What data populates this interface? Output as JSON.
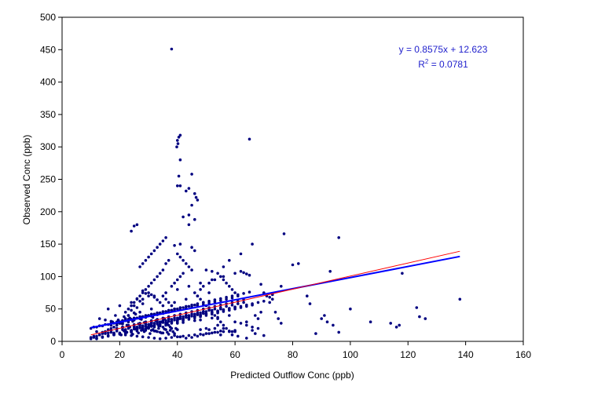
{
  "chart_data": {
    "type": "scatter",
    "title": "",
    "xlabel": "Predicted Outflow Conc (ppb)",
    "ylabel": "Observed Conc (ppb)",
    "xlim": [
      0,
      160
    ],
    "ylim": [
      0,
      500
    ],
    "xticks": [
      0,
      20,
      40,
      60,
      80,
      100,
      120,
      140,
      160
    ],
    "yticks": [
      0,
      50,
      100,
      150,
      200,
      250,
      300,
      350,
      400,
      450,
      500
    ],
    "grid": false,
    "legend": "none",
    "colors": {
      "points": "#000080",
      "trendline": "#0000ff",
      "identity_line": "#ff0000",
      "equation": "#1f1fcc"
    },
    "equation_text": "y = 0.8575x + 12.623",
    "r2_prefix": "R",
    "r2_sup": "2",
    "r2_value": " = 0.0781",
    "lines": [
      {
        "kind": "linear-trend",
        "color": "#0000ff",
        "slope": 0.8575,
        "intercept": 12.623,
        "x_range": [
          10,
          138
        ]
      },
      {
        "kind": "reference",
        "color": "#ff0000",
        "x": [
          10,
          138
        ],
        "y": [
          10,
          139
        ]
      }
    ],
    "points_x": [
      38,
      41,
      40.5,
      40,
      40.2,
      39.8,
      41,
      40.5,
      45,
      44,
      43,
      46,
      46.5,
      47,
      45,
      44,
      42,
      46,
      40,
      41,
      44,
      41,
      45,
      46,
      39,
      40,
      41,
      42,
      43,
      44,
      45,
      42,
      41,
      40,
      39,
      38,
      36,
      35,
      34,
      33,
      32,
      31,
      30,
      29,
      28,
      27,
      26,
      25,
      24,
      37,
      36,
      35,
      34,
      33,
      32,
      31,
      30,
      29,
      28,
      27,
      26,
      25,
      24,
      23,
      22,
      50,
      52,
      54,
      55,
      56,
      57,
      58,
      59,
      60,
      61,
      62,
      63,
      64,
      65,
      53,
      51,
      49,
      48,
      46,
      47,
      48,
      49,
      50,
      51,
      52,
      53,
      54,
      55,
      56,
      57,
      58,
      59,
      60,
      62,
      64,
      66,
      68,
      35,
      36,
      37,
      38,
      39,
      30,
      31,
      32,
      33,
      34,
      28,
      29,
      30,
      26,
      27,
      28,
      25,
      26,
      24,
      25,
      23,
      22,
      21,
      20,
      19,
      18,
      17,
      16,
      15,
      14,
      13,
      12,
      11,
      10,
      12,
      14,
      16,
      18,
      20,
      22,
      24,
      26,
      28,
      30,
      32,
      34,
      36,
      38,
      40,
      42,
      44,
      46,
      48,
      50,
      52,
      54,
      56,
      58,
      60,
      19,
      21,
      23,
      25,
      27,
      29,
      31,
      33,
      35,
      37,
      39,
      41,
      43,
      45,
      47,
      49,
      51,
      53,
      55,
      57,
      59,
      61,
      63,
      18,
      20,
      22,
      24,
      26,
      28,
      30,
      32,
      34,
      36,
      38,
      40,
      42,
      44,
      46,
      48,
      50,
      52,
      54,
      20,
      22,
      24,
      26,
      28,
      30,
      32,
      34,
      36,
      38,
      17,
      19,
      21,
      23,
      25,
      27,
      29,
      31,
      33,
      35,
      37,
      39,
      41,
      43,
      45,
      47,
      49,
      51,
      53,
      55,
      57,
      59,
      15,
      17,
      19,
      21,
      23,
      25,
      27,
      29,
      31,
      33,
      22,
      24,
      26,
      28,
      30,
      32,
      34,
      36,
      38,
      40,
      42,
      44,
      46,
      48,
      50,
      52,
      54,
      56,
      58,
      60,
      62,
      64,
      66,
      65,
      66,
      62,
      58,
      56,
      69,
      70,
      72,
      73,
      74,
      75,
      76,
      77,
      80,
      82,
      85,
      86,
      88,
      90,
      91,
      92,
      93,
      94,
      96,
      96,
      100,
      107,
      114,
      116,
      117,
      118,
      123,
      124,
      126,
      138,
      76,
      71,
      72,
      73,
      70,
      68,
      66,
      64,
      62,
      60,
      58,
      56,
      54,
      52,
      50,
      48,
      46,
      44,
      42,
      40,
      38,
      36,
      34,
      32,
      30,
      28,
      26,
      24,
      22,
      20,
      18,
      16,
      14,
      12,
      10,
      11,
      13,
      15,
      17,
      19,
      21,
      23,
      25,
      27,
      29,
      31,
      33,
      35,
      37,
      39,
      41,
      43,
      45,
      47,
      49,
      51,
      53,
      55,
      57,
      59,
      61,
      63,
      12,
      14,
      16,
      18,
      20,
      22,
      24,
      26,
      28,
      30,
      32,
      34,
      36,
      38,
      40,
      42,
      44,
      46,
      48,
      50,
      52,
      54,
      56,
      58,
      60,
      13,
      15,
      17,
      19,
      21,
      23,
      25,
      27,
      29,
      31,
      33,
      35,
      37,
      39,
      41,
      43,
      45,
      47,
      49,
      51,
      53,
      55,
      10,
      12,
      14,
      16,
      18,
      20,
      22,
      24,
      26,
      28,
      30,
      32,
      34,
      36,
      38,
      40,
      42,
      44,
      46,
      48,
      50,
      11,
      13,
      15,
      17,
      19,
      21,
      23,
      25,
      27,
      29,
      31,
      33,
      35,
      37,
      39,
      41,
      43,
      45,
      47,
      49,
      51,
      53,
      55,
      57,
      59,
      61,
      63,
      65,
      67,
      69,
      16,
      20,
      24,
      28,
      32,
      36,
      40,
      44,
      48,
      52,
      56,
      60,
      64,
      68,
      23,
      27,
      31,
      35,
      39,
      43,
      47,
      51,
      55,
      59,
      19,
      25,
      31,
      37,
      43,
      49,
      55,
      61,
      67,
      22,
      28,
      34,
      40,
      46,
      52,
      58,
      64,
      70,
      18,
      24,
      30,
      36,
      42,
      48,
      54,
      60,
      66,
      25,
      27,
      29,
      31,
      33,
      35,
      37,
      39,
      41,
      43,
      45,
      47,
      49,
      51,
      53,
      26,
      28,
      30,
      32,
      34,
      36,
      38,
      40,
      42,
      44,
      46,
      48,
      50,
      52,
      54,
      56,
      20,
      21,
      22,
      23,
      24,
      25,
      26,
      27,
      28,
      29,
      30,
      31,
      32,
      33,
      34,
      35,
      36,
      37,
      38,
      39,
      40,
      20.5,
      21.5,
      22.5,
      23.5,
      24.5,
      25.5,
      26.5,
      27.5,
      28.5,
      29.5,
      30.5,
      31.5,
      32.5,
      33.5,
      34.5,
      35.5,
      36.5,
      37.5,
      38.5,
      39.5,
      40.5,
      17.5,
      18.5,
      19.5,
      20.5,
      21.5,
      22.5,
      23.5,
      24.5,
      25.5,
      26.5,
      27.5,
      28.5,
      29.5,
      30.5,
      31.5,
      32.5,
      33.5,
      34.5,
      35.5,
      36.5,
      37.5,
      38.5
    ],
    "points_y": [
      451,
      318,
      315,
      310,
      305,
      300,
      280,
      255,
      258,
      236,
      232,
      228,
      222,
      218,
      210,
      195,
      192,
      188,
      240,
      240,
      180,
      150,
      145,
      140,
      148,
      135,
      130,
      125,
      120,
      115,
      110,
      105,
      100,
      95,
      90,
      85,
      160,
      155,
      150,
      145,
      140,
      135,
      130,
      125,
      120,
      115,
      180,
      178,
      170,
      125,
      120,
      110,
      105,
      100,
      95,
      90,
      85,
      80,
      75,
      70,
      65,
      60,
      55,
      50,
      45,
      110,
      108,
      105,
      100,
      95,
      90,
      85,
      80,
      75,
      70,
      108,
      106,
      104,
      102,
      95,
      90,
      85,
      80,
      75,
      70,
      65,
      60,
      55,
      50,
      45,
      40,
      35,
      30,
      25,
      20,
      15,
      10,
      30,
      28,
      25,
      22,
      20,
      70,
      65,
      60,
      55,
      50,
      75,
      72,
      68,
      64,
      60,
      78,
      74,
      70,
      66,
      62,
      58,
      55,
      52,
      48,
      44,
      40,
      35,
      32,
      28,
      25,
      22,
      20,
      18,
      15,
      12,
      10,
      8,
      6,
      4,
      5,
      7,
      9,
      11,
      13,
      15,
      17,
      19,
      21,
      23,
      25,
      27,
      29,
      31,
      33,
      35,
      37,
      39,
      41,
      43,
      45,
      47,
      49,
      51,
      53,
      20,
      22,
      24,
      26,
      28,
      30,
      32,
      34,
      36,
      38,
      40,
      42,
      44,
      46,
      48,
      50,
      52,
      54,
      56,
      58,
      60,
      62,
      64,
      10,
      12,
      14,
      16,
      18,
      20,
      22,
      24,
      26,
      28,
      30,
      32,
      34,
      36,
      38,
      40,
      42,
      44,
      46,
      30,
      32,
      34,
      36,
      38,
      40,
      42,
      44,
      46,
      48,
      25,
      27,
      29,
      31,
      33,
      35,
      37,
      39,
      41,
      43,
      45,
      47,
      49,
      51,
      53,
      55,
      57,
      59,
      61,
      63,
      65,
      67,
      15,
      17,
      19,
      21,
      23,
      25,
      27,
      29,
      31,
      33,
      12,
      14,
      16,
      18,
      20,
      22,
      24,
      26,
      28,
      30,
      32,
      34,
      36,
      38,
      40,
      42,
      44,
      46,
      48,
      50,
      52,
      54,
      56,
      312,
      150,
      135,
      125,
      115,
      88,
      75,
      60,
      72,
      45,
      35,
      28,
      166,
      118,
      120,
      70,
      58,
      12,
      35,
      40,
      30,
      108,
      25,
      14,
      160,
      50,
      30,
      28,
      22,
      25,
      105,
      52,
      38,
      35,
      65,
      85,
      70,
      68,
      65,
      62,
      60,
      58,
      56,
      54,
      52,
      50,
      48,
      46,
      44,
      42,
      40,
      38,
      36,
      34,
      32,
      30,
      28,
      26,
      24,
      22,
      20,
      18,
      16,
      14,
      12,
      10,
      8,
      6,
      4,
      6,
      8,
      10,
      12,
      14,
      16,
      18,
      20,
      22,
      24,
      26,
      28,
      30,
      32,
      34,
      36,
      38,
      40,
      42,
      44,
      46,
      48,
      50,
      52,
      54,
      56,
      58,
      60,
      15,
      14,
      13,
      12,
      11,
      10,
      9,
      8,
      7,
      6,
      5,
      4,
      5,
      6,
      7,
      8,
      9,
      10,
      11,
      12,
      13,
      14,
      15,
      16,
      17,
      35,
      33,
      31,
      29,
      27,
      25,
      23,
      21,
      19,
      17,
      15,
      13,
      11,
      9,
      7,
      5,
      6,
      8,
      10,
      12,
      14,
      16,
      20,
      22,
      24,
      26,
      28,
      30,
      32,
      34,
      36,
      38,
      40,
      42,
      44,
      46,
      48,
      50,
      52,
      54,
      56,
      18,
      20,
      22,
      24,
      26,
      28,
      30,
      32,
      34,
      36,
      38,
      40,
      42,
      44,
      46,
      48,
      50,
      52,
      54,
      56,
      58,
      60,
      62,
      64,
      66,
      68,
      70,
      72,
      74,
      76,
      40,
      45,
      50,
      55,
      60,
      65,
      70,
      75,
      80,
      85,
      90,
      95,
      100,
      105,
      30,
      35,
      40,
      45,
      50,
      55,
      60,
      65,
      70,
      75,
      10,
      15,
      20,
      25,
      30,
      35,
      40,
      45,
      50,
      8,
      12,
      16,
      20,
      24,
      28,
      32,
      36,
      40,
      5,
      9,
      13,
      17,
      21,
      25,
      29,
      33,
      37,
      15,
      17,
      19,
      21,
      23,
      25,
      27,
      29,
      31,
      33,
      35,
      37,
      39,
      41,
      43,
      18,
      20,
      22,
      24,
      26,
      28,
      30,
      32,
      34,
      36,
      38,
      40,
      42,
      44,
      46,
      48,
      25,
      20,
      28,
      22,
      18,
      30,
      15,
      24,
      19,
      27,
      21,
      17,
      26,
      23,
      16,
      29,
      14,
      22,
      18,
      25,
      20,
      12,
      18,
      10,
      16,
      14,
      22,
      11,
      19,
      13,
      17,
      15,
      21,
      12,
      18,
      16,
      20,
      13,
      19,
      14,
      17,
      15,
      20,
      35,
      30,
      40,
      33,
      28,
      38,
      25,
      36,
      31,
      42,
      27,
      34,
      29,
      39,
      26,
      37,
      32,
      24,
      30,
      35,
      28,
      22
    ]
  }
}
